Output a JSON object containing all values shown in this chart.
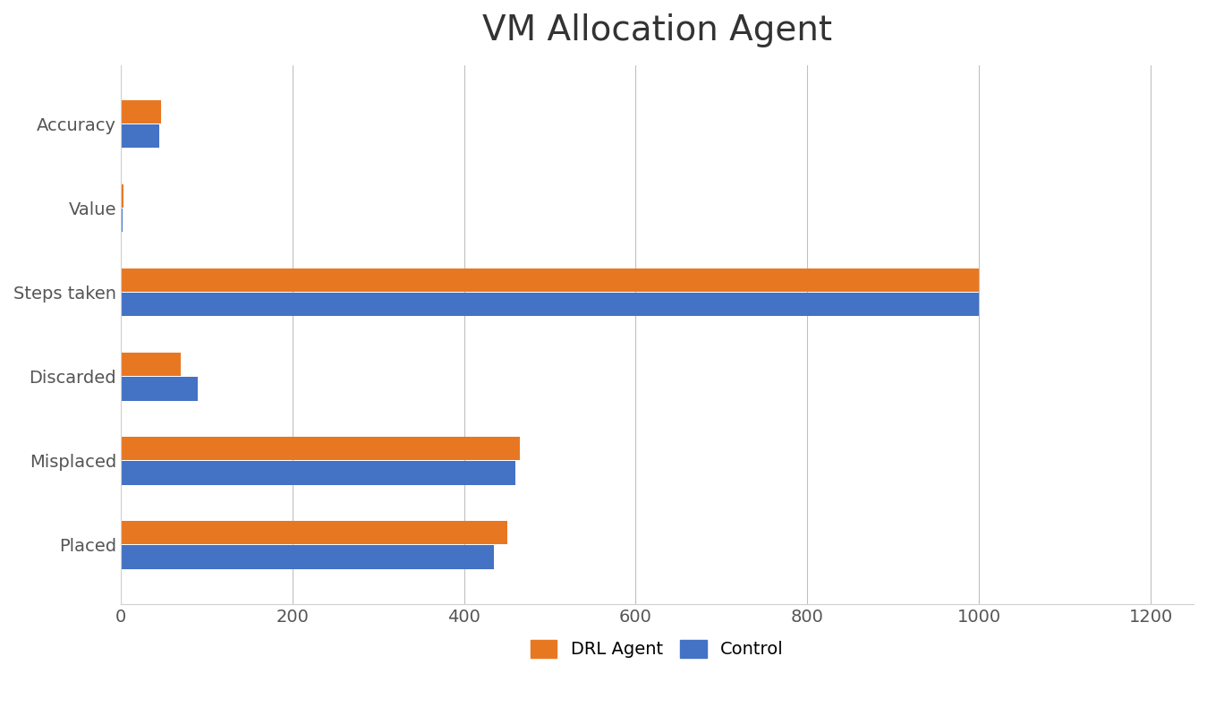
{
  "title": "VM Allocation Agent",
  "categories": [
    "Placed",
    "Misplaced",
    "Discarded",
    "Steps taken",
    "Value",
    "Accuracy"
  ],
  "drl_agent": [
    450,
    465,
    70,
    1000,
    3,
    47
  ],
  "control": [
    435,
    460,
    90,
    1000,
    2,
    45
  ],
  "drl_color": "#E87722",
  "control_color": "#4472C4",
  "xlim": [
    0,
    1250
  ],
  "xticks": [
    0,
    200,
    400,
    600,
    800,
    1000,
    1200
  ],
  "background_color": "#FFFFFF",
  "bar_height": 0.28,
  "bar_gap": 0.005,
  "legend_labels": [
    "DRL Agent",
    "Control"
  ],
  "title_fontsize": 28,
  "tick_fontsize": 14,
  "legend_fontsize": 14,
  "grid_color": "#C0C0C0",
  "frame_color": "#D0D0D0"
}
